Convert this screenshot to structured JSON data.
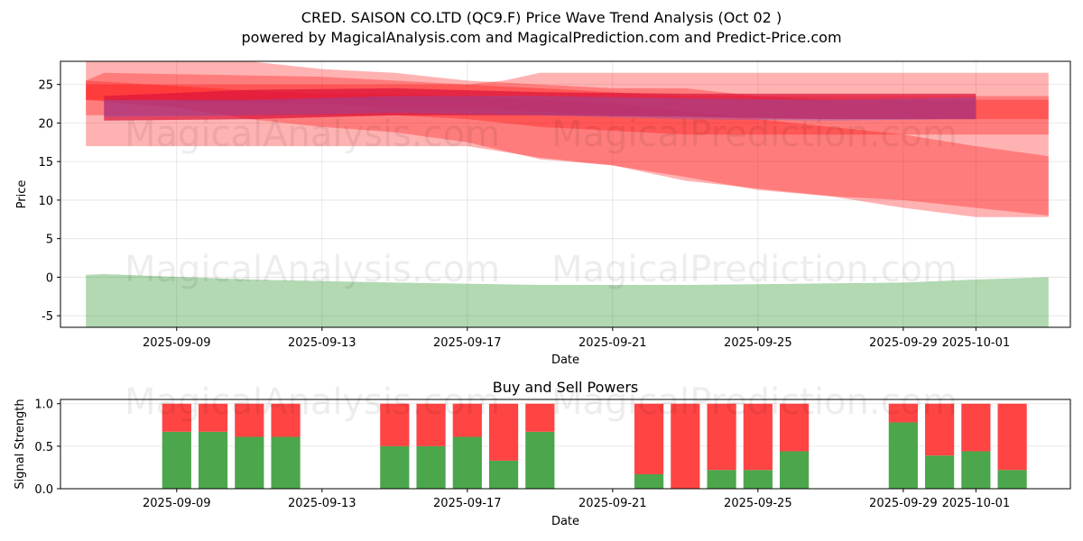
{
  "chart_data": [
    {
      "type": "area",
      "title_line1": "CRED. SAISON CO.LTD (QC9.F) Price Wave Trend Analysis (Oct 02 )",
      "title_line2": "powered by MagicalAnalysis.com and MagicalPrediction.com and Predict-Price.com",
      "xlabel": "Date",
      "ylabel": "Price",
      "ylim": [
        -6.5,
        28
      ],
      "xlim_days_since_2025_09_07": [
        -1.2,
        26.6
      ],
      "x_ticks": [
        {
          "day": 2,
          "label": "2025-09-09"
        },
        {
          "day": 6,
          "label": "2025-09-13"
        },
        {
          "day": 10,
          "label": "2025-09-17"
        },
        {
          "day": 14,
          "label": "2025-09-21"
        },
        {
          "day": 18,
          "label": "2025-09-25"
        },
        {
          "day": 22,
          "label": "2025-09-29"
        },
        {
          "day": 24,
          "label": "2025-10-01"
        }
      ],
      "y_ticks": [
        -5,
        0,
        5,
        10,
        15,
        20,
        25
      ],
      "grid": true,
      "watermarks": [
        "MagicalAnalysis.com",
        "MagicalPrediction.com"
      ],
      "series": [
        {
          "name": "red-band-upper",
          "color": "#ff0000",
          "opacity": 0.3,
          "x": [
            -0.5,
            0,
            6,
            8,
            10,
            12,
            14,
            16,
            18,
            20,
            22,
            24,
            26
          ],
          "upper": [
            25.5,
            26.5,
            26.0,
            25.5,
            25.0,
            24.5,
            24.0,
            23.5,
            23.5,
            23.5,
            23.5,
            23.5,
            23.5
          ],
          "lower": [
            23.0,
            23.0,
            22.5,
            22.0,
            22.0,
            21.5,
            21.0,
            21.0,
            20.5,
            20.5,
            20.5,
            20.5,
            20.5
          ]
        },
        {
          "name": "red-band-wide",
          "color": "#ff0000",
          "opacity": 0.3,
          "x": [
            -0.5,
            2,
            4,
            6,
            8,
            10,
            12,
            14,
            16,
            18,
            20,
            22,
            24,
            26
          ],
          "upper": [
            28.5,
            28.0,
            28.0,
            27.0,
            26.5,
            25.5,
            25.0,
            24.5,
            24.5,
            23.5,
            23.0,
            23.0,
            23.0,
            23.0
          ],
          "lower": [
            17.0,
            17.0,
            17.0,
            17.0,
            17.0,
            17.0,
            15.5,
            14.5,
            12.5,
            11.5,
            10.5,
            10.0,
            9.0,
            8.0
          ]
        },
        {
          "name": "red-band-flat",
          "color": "#ff0000",
          "opacity": 0.3,
          "x": [
            -0.5,
            8,
            10,
            11,
            12,
            14,
            16,
            18,
            20,
            22,
            24,
            26
          ],
          "upper": [
            25.0,
            25.0,
            25.0,
            25.5,
            26.5,
            26.5,
            26.5,
            26.5,
            26.5,
            26.5,
            26.5,
            26.5
          ],
          "lower": [
            21.0,
            21.0,
            20.5,
            20.0,
            19.5,
            19.0,
            18.5,
            18.5,
            18.5,
            18.5,
            18.5,
            18.5
          ]
        },
        {
          "name": "red-band-decline",
          "color": "#ff0000",
          "opacity": 0.3,
          "x": [
            -0.5,
            2,
            4,
            6,
            8,
            10,
            12,
            14,
            16,
            18,
            20,
            22,
            24,
            26
          ],
          "upper": [
            25.5,
            24.8,
            24.2,
            23.8,
            23.8,
            23.5,
            23.0,
            22.5,
            21.5,
            20.5,
            19.5,
            18.5,
            17.0,
            15.7
          ],
          "lower": [
            23.0,
            22.0,
            20.5,
            19.5,
            18.8,
            17.5,
            15.3,
            14.5,
            13.0,
            11.3,
            10.5,
            9.0,
            7.8,
            7.8
          ]
        },
        {
          "name": "crimson-band",
          "color": "#dc143c",
          "opacity": 0.7,
          "x": [
            0,
            4,
            8,
            12,
            16,
            20,
            24
          ],
          "upper": [
            23.5,
            24.3,
            24.5,
            24.0,
            23.8,
            23.8,
            23.8
          ],
          "lower": [
            20.3,
            20.5,
            21.0,
            21.0,
            20.8,
            20.5,
            20.5
          ]
        },
        {
          "name": "purple-band",
          "color": "#6a5acd",
          "opacity": 0.35,
          "x": [
            0,
            4,
            8,
            12,
            16,
            20,
            24
          ],
          "upper": [
            23.0,
            23.0,
            23.5,
            23.5,
            23.2,
            23.0,
            23.3
          ],
          "lower": [
            20.8,
            21.0,
            21.3,
            21.0,
            20.5,
            20.3,
            20.5
          ]
        },
        {
          "name": "green-band",
          "color": "#008000",
          "opacity": 0.3,
          "x": [
            -0.5,
            0,
            4,
            8,
            12,
            16,
            20,
            22,
            24,
            26
          ],
          "upper": [
            0.3,
            0.4,
            -0.3,
            -0.7,
            -1.0,
            -1.0,
            -0.8,
            -0.7,
            -0.3,
            0.0
          ],
          "lower": [
            -7.5,
            -7.5,
            -7.5,
            -7.5,
            -7.5,
            -7.5,
            -7.5,
            -7.5,
            -7.5,
            -7.5
          ]
        }
      ]
    },
    {
      "type": "bar",
      "title": "Buy and Sell Powers",
      "xlabel": "Date",
      "ylabel": "Signal Strength",
      "ylim": [
        0,
        1.05
      ],
      "xlim_days_since_2025_09_07": [
        -1.2,
        26.6
      ],
      "y_ticks": [
        0.0,
        0.5,
        1.0
      ],
      "x_ticks": [
        {
          "day": 2,
          "label": "2025-09-09"
        },
        {
          "day": 6,
          "label": "2025-09-13"
        },
        {
          "day": 10,
          "label": "2025-09-17"
        },
        {
          "day": 14,
          "label": "2025-09-21"
        },
        {
          "day": 18,
          "label": "2025-09-25"
        },
        {
          "day": 22,
          "label": "2025-09-29"
        },
        {
          "day": 24,
          "label": "2025-10-01"
        }
      ],
      "buy_color": "#4ca64c",
      "sell_color": "#ff4444",
      "bars": [
        {
          "day": 2,
          "buy": 0.67
        },
        {
          "day": 3,
          "buy": 0.67
        },
        {
          "day": 4,
          "buy": 0.61
        },
        {
          "day": 5,
          "buy": 0.61
        },
        {
          "day": 8,
          "buy": 0.5
        },
        {
          "day": 9,
          "buy": 0.5
        },
        {
          "day": 10,
          "buy": 0.61
        },
        {
          "day": 11,
          "buy": 0.33
        },
        {
          "day": 12,
          "buy": 0.67
        },
        {
          "day": 15,
          "buy": 0.17
        },
        {
          "day": 16,
          "buy": 0.0
        },
        {
          "day": 17,
          "buy": 0.22
        },
        {
          "day": 18,
          "buy": 0.22
        },
        {
          "day": 19,
          "buy": 0.44
        },
        {
          "day": 22,
          "buy": 0.78
        },
        {
          "day": 23,
          "buy": 0.39
        },
        {
          "day": 24,
          "buy": 0.44
        },
        {
          "day": 25,
          "buy": 0.22
        }
      ],
      "watermarks": [
        "MagicalAnalysis.com",
        "MagicalPrediction.com"
      ]
    }
  ]
}
